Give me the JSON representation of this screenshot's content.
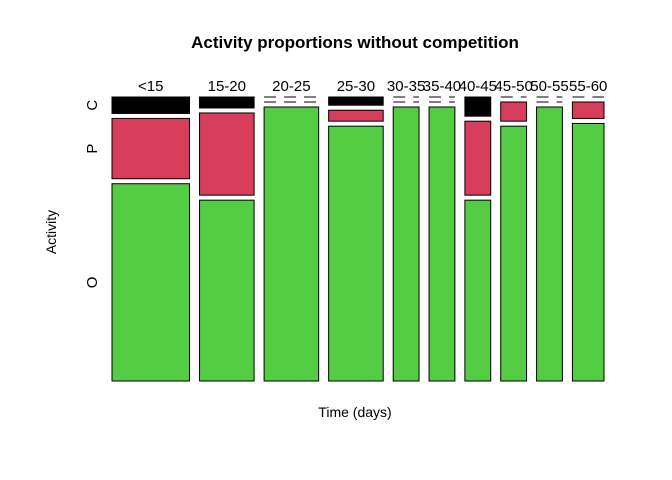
{
  "chart_data": {
    "type": "mosaic",
    "title": "Activity proportions without competition",
    "xlabel": "Time (days)",
    "ylabel": "Activity",
    "activities": [
      "O",
      "P",
      "C"
    ],
    "activity_colors": {
      "O": "#54CD45",
      "P": "#D63E5B",
      "C": "#000000"
    },
    "categories": [
      "<15",
      "15-20",
      "20-25",
      "25-30",
      "30-35",
      "35-40",
      "40-45",
      "45-50",
      "50-55",
      "55-60"
    ],
    "relative_widths": [
      1.35,
      0.95,
      0.95,
      0.95,
      0.45,
      0.45,
      0.45,
      0.45,
      0.45,
      0.55
    ],
    "proportions": [
      {
        "O": 0.72,
        "P": 0.22,
        "C": 0.06
      },
      {
        "O": 0.66,
        "P": 0.3,
        "C": 0.04
      },
      {
        "O": 1.0,
        "P": 0.0,
        "C": 0.0
      },
      {
        "O": 0.93,
        "P": 0.04,
        "C": 0.03
      },
      {
        "O": 1.0,
        "P": 0.0,
        "C": 0.0
      },
      {
        "O": 1.0,
        "P": 0.0,
        "C": 0.0
      },
      {
        "O": 0.66,
        "P": 0.27,
        "C": 0.07
      },
      {
        "O": 0.93,
        "P": 0.07,
        "C": 0.0
      },
      {
        "O": 1.0,
        "P": 0.0,
        "C": 0.0
      },
      {
        "O": 0.94,
        "P": 0.06,
        "C": 0.0
      }
    ]
  }
}
